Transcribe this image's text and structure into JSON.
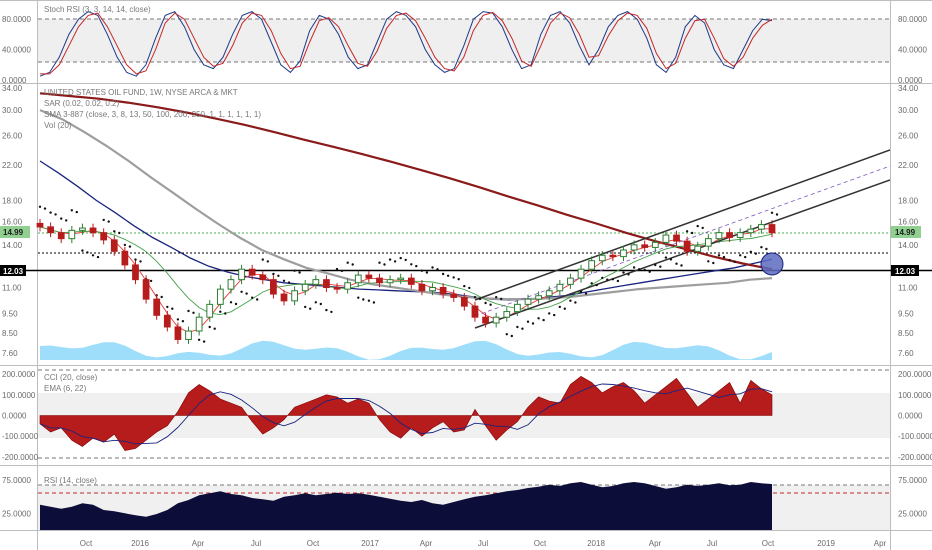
{
  "colors": {
    "price_tag_bg": "#8fcf8f",
    "line_12_bg": "#000000",
    "bull_candle": "#2e7d32",
    "bear_candle": "#b71c1c",
    "sma_fast": "#e53935",
    "sma_mid": "#43a047",
    "sma_slow": "#1a237e",
    "sma_200": "#9e9e9e",
    "sma_250": "#8b1a1a",
    "volume": "#4fc3f7",
    "cci_fill": "#b71c1c",
    "rsi_fill": "#0d0d3a",
    "channel": "#333333",
    "highlight_circle": "#3f51b5"
  },
  "chart_data": [
    {
      "type": "line",
      "panel": "stoch_rsi",
      "legend": "Stoch RSI (3, 3, 14, 14, close)",
      "y_ticks": [
        "80.0000",
        "40.0000",
        "0.0000"
      ],
      "ylim": [
        0,
        100
      ],
      "levels": [
        80,
        20
      ],
      "series": [
        {
          "name": "K",
          "values": [
            5,
            10,
            30,
            60,
            80,
            90,
            85,
            60,
            30,
            10,
            5,
            20,
            55,
            85,
            90,
            70,
            40,
            20,
            15,
            30,
            60,
            85,
            90,
            80,
            50,
            20,
            10,
            25,
            65,
            85,
            80,
            60,
            30,
            15,
            20,
            50,
            80,
            90,
            85,
            70,
            40,
            20,
            10,
            15,
            45,
            80,
            90,
            88,
            70,
            40,
            15,
            20,
            60,
            85,
            90,
            75,
            45,
            20,
            40,
            70,
            85,
            90,
            80,
            55,
            20,
            10,
            30,
            70,
            85,
            75,
            40,
            20,
            15,
            40,
            65,
            80,
            78
          ]
        },
        {
          "name": "D",
          "values": [
            8,
            8,
            20,
            45,
            70,
            85,
            88,
            70,
            45,
            20,
            8,
            12,
            40,
            75,
            88,
            80,
            55,
            30,
            18,
            22,
            45,
            75,
            88,
            85,
            65,
            35,
            15,
            18,
            50,
            78,
            82,
            70,
            45,
            22,
            18,
            38,
            68,
            85,
            88,
            78,
            55,
            30,
            15,
            12,
            30,
            65,
            85,
            89,
            78,
            55,
            25,
            18,
            45,
            75,
            88,
            82,
            60,
            30,
            32,
            58,
            78,
            88,
            85,
            68,
            35,
            15,
            22,
            55,
            78,
            80,
            55,
            28,
            18,
            30,
            55,
            72,
            80
          ]
        }
      ]
    },
    {
      "type": "line",
      "panel": "price",
      "legend_lines": [
        "UNITED STATES OIL FUND, 1W, NYSE ARCA & MKT",
        "SAR (0.02, 0.02, 0.2)",
        "SMA 3-887 (close, 3, 8, 13, 50, 100, 200, 250, 1, 1, 1, 1, 1, 1)",
        "Vol (20)"
      ],
      "y_ticks": [
        "34.00",
        "30.00",
        "26.00",
        "22.00",
        "18.00",
        "16.00",
        "14.00",
        "12.00",
        "11.00",
        "9.50",
        "8.50",
        "7.60"
      ],
      "log_scale": true,
      "price_tag": "14.99",
      "line_tag": "12.03",
      "x_ticks": [
        "Oct",
        "2016",
        "Apr",
        "Jul",
        "Oct",
        "2017",
        "Apr",
        "Jul",
        "Oct",
        "2018",
        "Apr",
        "Jul",
        "Oct",
        "2019",
        "Apr"
      ],
      "series": [
        {
          "name": "close",
          "values": [
            15.5,
            15.0,
            14.5,
            15.2,
            15.4,
            15.0,
            14.4,
            13.5,
            12.5,
            11.5,
            10.3,
            9.4,
            8.8,
            8.2,
            8.6,
            9.3,
            10.0,
            10.9,
            11.5,
            12.2,
            11.8,
            11.5,
            10.6,
            10.2,
            10.8,
            11.2,
            11.5,
            11.0,
            10.9,
            11.3,
            11.8,
            11.6,
            11.3,
            11.5,
            11.6,
            11.2,
            10.8,
            11.0,
            10.6,
            10.4,
            9.9,
            9.3,
            9.0,
            9.3,
            9.6,
            10.0,
            10.3,
            10.5,
            10.8,
            11.2,
            11.6,
            12.2,
            12.8,
            13.2,
            13.1,
            13.6,
            14.0,
            13.8,
            14.2,
            14.8,
            14.3,
            13.5,
            13.9,
            14.5,
            15.0,
            14.6,
            15.0,
            15.3,
            15.7,
            14.99
          ]
        },
        {
          "name": "SMA 50",
          "values": [
            22.5,
            21.0,
            19.5,
            18.0,
            16.8,
            15.6,
            14.6,
            13.8,
            13.0,
            12.4,
            12.0,
            11.7,
            11.5,
            11.3,
            11.2,
            11.1,
            11.0,
            10.9,
            10.85,
            10.8,
            10.75,
            10.7,
            10.6,
            10.45,
            10.3,
            10.25,
            10.3,
            10.4,
            10.5,
            10.7,
            10.9,
            11.1,
            11.3,
            11.5,
            11.7,
            11.9,
            12.1,
            12.3,
            12.6,
            12.9
          ]
        },
        {
          "name": "SMA 200",
          "values": [
            30.0,
            28.5,
            26.5,
            24.5,
            22.5,
            20.5,
            18.8,
            17.2,
            15.8,
            14.6,
            13.6,
            12.9,
            12.3,
            11.9,
            11.5,
            11.2,
            11.0,
            10.8,
            10.6,
            10.45,
            10.35,
            10.3,
            10.3,
            10.35,
            10.45,
            10.6,
            10.75,
            10.9,
            11.0,
            11.1,
            11.2,
            11.3,
            11.5,
            11.6
          ]
        },
        {
          "name": "SMA 250",
          "values": [
            33.0,
            32.5,
            32.0,
            31.3,
            30.5,
            29.6,
            28.6,
            27.6,
            26.5,
            25.4,
            24.4,
            23.4,
            22.4,
            21.4,
            20.4,
            19.4,
            18.4,
            17.5,
            16.6,
            15.8,
            15.0,
            14.3,
            13.7,
            13.1,
            12.6,
            12.2
          ]
        }
      ]
    },
    {
      "type": "area",
      "panel": "cci",
      "legend_lines": [
        "CCI (20, close)",
        "EMA (6, 22)"
      ],
      "y_ticks": [
        "200.0000",
        "100.0000",
        "0.0000",
        "-100.0000",
        "-200.0000"
      ],
      "ylim": [
        -230,
        230
      ],
      "levels": [
        100,
        -100
      ],
      "series": [
        {
          "name": "CCI",
          "values": [
            -40,
            -80,
            -60,
            -120,
            -150,
            -110,
            -130,
            -90,
            -170,
            -160,
            -120,
            -80,
            -50,
            20,
            110,
            150,
            120,
            80,
            60,
            40,
            -30,
            -90,
            -60,
            -20,
            40,
            60,
            80,
            100,
            90,
            60,
            80,
            60,
            -20,
            -80,
            -110,
            -60,
            -100,
            -60,
            -30,
            -80,
            -70,
            30,
            -50,
            -120,
            -70,
            -30,
            40,
            90,
            70,
            60,
            150,
            190,
            160,
            110,
            140,
            160,
            120,
            60,
            100,
            140,
            180,
            110,
            40,
            80,
            120,
            160,
            60,
            170,
            130,
            100
          ]
        }
      ]
    },
    {
      "type": "area",
      "panel": "rsi",
      "legend": "RSI (14, close)",
      "y_ticks": [
        "75.0000",
        "25.0000"
      ],
      "ylim": [
        0,
        90
      ],
      "levels": [
        70,
        30
      ],
      "series": [
        {
          "name": "RSI",
          "values": [
            38,
            35,
            32,
            35,
            40,
            38,
            30,
            28,
            25,
            22,
            20,
            24,
            30,
            40,
            45,
            52,
            55,
            58,
            54,
            52,
            48,
            46,
            44,
            50,
            52,
            55,
            52,
            54,
            56,
            54,
            55,
            53,
            50,
            47,
            44,
            42,
            45,
            40,
            38,
            42,
            46,
            50,
            52,
            55,
            58,
            60,
            63,
            65,
            68,
            66,
            70,
            72,
            68,
            64,
            66,
            70,
            72,
            70,
            66,
            62,
            64,
            68,
            66,
            68,
            70,
            67,
            68,
            72,
            70,
            69
          ]
        }
      ]
    }
  ]
}
